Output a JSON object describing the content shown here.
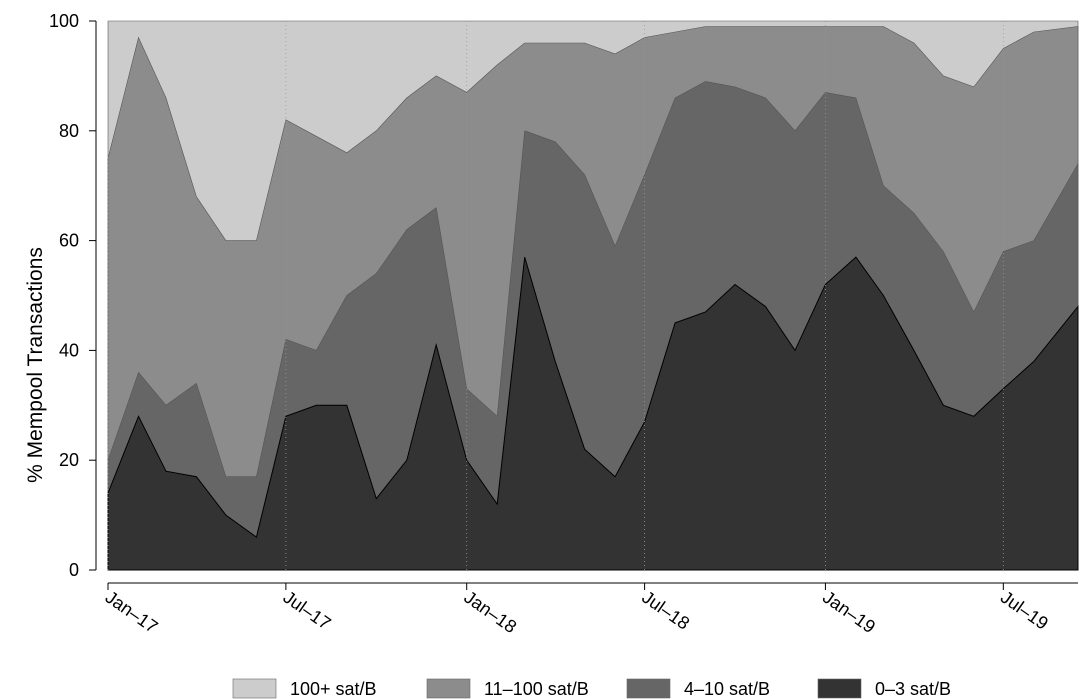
{
  "chart_data": {
    "type": "area",
    "stacked": true,
    "title": "",
    "xlabel": "",
    "ylabel": "% Mempool Transactions",
    "ylim": [
      0,
      100
    ],
    "y_ticks": [
      0,
      20,
      40,
      60,
      80,
      100
    ],
    "x_range": [
      "2017-01-01",
      "2019-09-15"
    ],
    "x_ticks": [
      {
        "date": "2017-01-01",
        "label": "Jan–17"
      },
      {
        "date": "2017-07-01",
        "label": "Jul–17"
      },
      {
        "date": "2018-01-01",
        "label": "Jan–18"
      },
      {
        "date": "2018-07-01",
        "label": "Jul–18"
      },
      {
        "date": "2019-01-01",
        "label": "Jan–19"
      },
      {
        "date": "2019-07-01",
        "label": "Jul–19"
      }
    ],
    "grid": "dotted vertical lines at x ticks",
    "legend_position": "bottom",
    "x": [
      "2017-01-01",
      "2017-02-01",
      "2017-03-01",
      "2017-04-01",
      "2017-05-01",
      "2017-06-01",
      "2017-07-01",
      "2017-08-01",
      "2017-09-01",
      "2017-10-01",
      "2017-11-01",
      "2017-12-01",
      "2018-01-01",
      "2018-02-01",
      "2018-03-01",
      "2018-04-01",
      "2018-05-01",
      "2018-06-01",
      "2018-07-01",
      "2018-08-01",
      "2018-09-01",
      "2018-10-01",
      "2018-11-01",
      "2018-12-01",
      "2019-01-01",
      "2019-02-01",
      "2019-03-01",
      "2019-04-01",
      "2019-05-01",
      "2019-06-01",
      "2019-07-01",
      "2019-08-01",
      "2019-09-15"
    ],
    "series": [
      {
        "name": "0–3 sat/B",
        "color": "#333333",
        "values": [
          14,
          28,
          18,
          17,
          10,
          6,
          28,
          30,
          30,
          13,
          20,
          41,
          20,
          12,
          57,
          38,
          22,
          17,
          27,
          45,
          47,
          52,
          48,
          40,
          52,
          57,
          50,
          40,
          30,
          28,
          33,
          38,
          48
        ]
      },
      {
        "name": "4–10 sat/B",
        "color": "#666666",
        "values": [
          20,
          36,
          30,
          34,
          17,
          17,
          42,
          40,
          50,
          54,
          62,
          66,
          33,
          28,
          80,
          78,
          72,
          59,
          72,
          86,
          89,
          88,
          86,
          80,
          87,
          86,
          70,
          65,
          58,
          47,
          58,
          60,
          74
        ]
      },
      {
        "name": "11–100 sat/B",
        "color": "#8c8c8c",
        "values": [
          75,
          97,
          86,
          68,
          60,
          60,
          82,
          79,
          76,
          80,
          86,
          90,
          87,
          92,
          96,
          96,
          96,
          94,
          97,
          98,
          99,
          99,
          99,
          99,
          99,
          99,
          99,
          96,
          90,
          88,
          95,
          98,
          99
        ]
      },
      {
        "name": "100+ sat/B",
        "color": "#cccccc",
        "values": [
          100,
          100,
          100,
          100,
          100,
          100,
          100,
          100,
          100,
          100,
          100,
          100,
          100,
          100,
          100,
          100,
          100,
          100,
          100,
          100,
          100,
          100,
          100,
          100,
          100,
          100,
          100,
          100,
          100,
          100,
          100,
          100,
          100
        ]
      }
    ],
    "legend_order": [
      "100+ sat/B",
      "11–100 sat/B",
      "4–10 sat/B",
      "0–3 sat/B"
    ]
  }
}
